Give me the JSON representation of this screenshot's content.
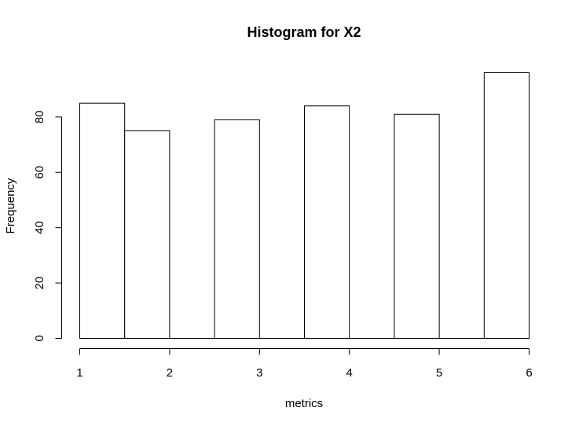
{
  "chart_data": {
    "type": "bar",
    "title": "Histogram for X2",
    "xlabel": "metrics",
    "ylabel": "Frequency",
    "bins": [
      {
        "x0": 1.0,
        "x1": 1.5,
        "count": 85
      },
      {
        "x0": 1.5,
        "x1": 2.0,
        "count": 75
      },
      {
        "x0": 2.0,
        "x1": 2.5,
        "count": 0
      },
      {
        "x0": 2.5,
        "x1": 3.0,
        "count": 79
      },
      {
        "x0": 3.0,
        "x1": 3.5,
        "count": 0
      },
      {
        "x0": 3.5,
        "x1": 4.0,
        "count": 84
      },
      {
        "x0": 4.0,
        "x1": 4.5,
        "count": 0
      },
      {
        "x0": 4.5,
        "x1": 5.0,
        "count": 81
      },
      {
        "x0": 5.0,
        "x1": 5.5,
        "count": 0
      },
      {
        "x0": 5.5,
        "x1": 6.0,
        "count": 96
      }
    ],
    "xlim": [
      1,
      6
    ],
    "ylim": [
      0,
      96
    ],
    "xticks": [
      "1",
      "2",
      "3",
      "4",
      "5",
      "6"
    ],
    "yticks": [
      "0",
      "20",
      "40",
      "60",
      "80"
    ],
    "grid": false,
    "bar_fill": "#ffffff",
    "bar_stroke": "#000000"
  }
}
